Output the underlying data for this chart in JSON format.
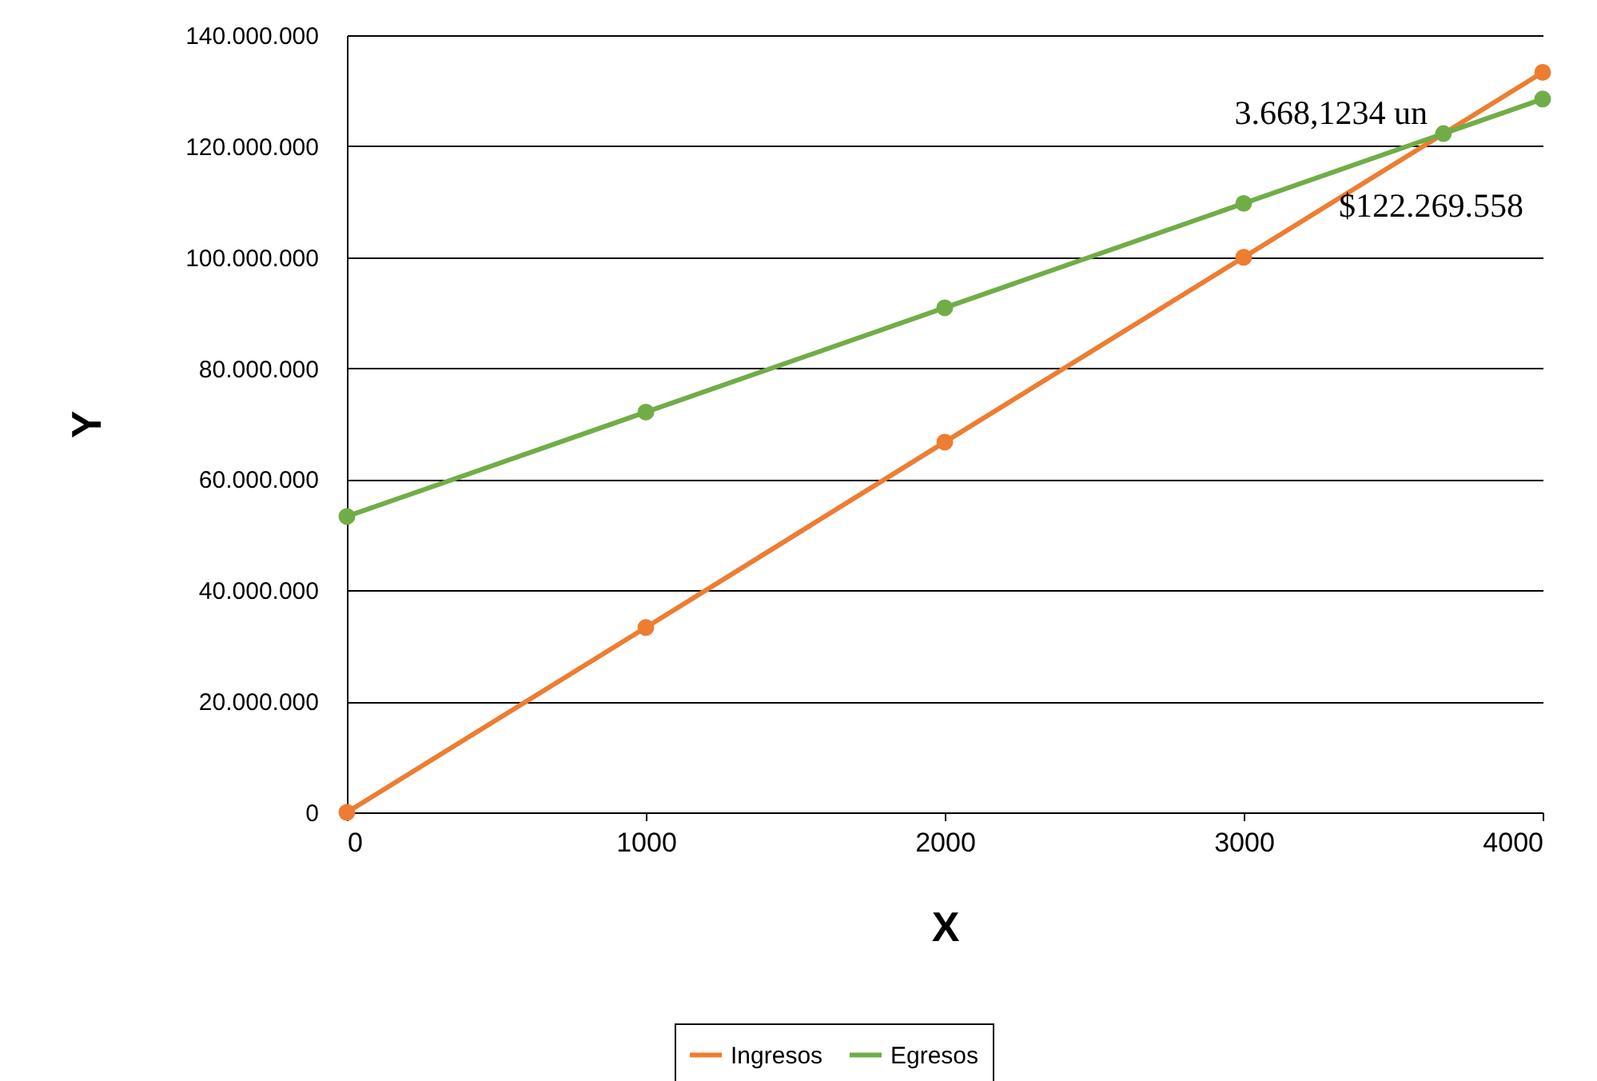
{
  "chart_data": {
    "type": "line",
    "xlabel": "X",
    "ylabel": "Y",
    "series": [
      {
        "name": "Ingresos",
        "color": "#ed7d31",
        "x": [
          0,
          1000,
          2000,
          3000,
          4000
        ],
        "values": [
          0,
          33300000,
          66700000,
          100000000,
          133300000
        ]
      },
      {
        "name": "Egresos",
        "color": "#70ad47",
        "x": [
          0,
          1000,
          2000,
          3000,
          3668.1234,
          4000
        ],
        "values": [
          53300000,
          72100000,
          90900000,
          109700000,
          122269558,
          128500000
        ]
      }
    ],
    "xlim": [
      0,
      4000
    ],
    "xticks": [
      0,
      1000,
      2000,
      3000,
      4000
    ],
    "ylim": [
      0,
      140000000
    ],
    "yticks": [
      {
        "value": 0,
        "label": "0"
      },
      {
        "value": 20000000,
        "label": "20.000.000"
      },
      {
        "value": 40000000,
        "label": "40.000.000"
      },
      {
        "value": 60000000,
        "label": "60.000.000"
      },
      {
        "value": 80000000,
        "label": "80.000.000"
      },
      {
        "value": 100000000,
        "label": "100.000.000"
      },
      {
        "value": 120000000,
        "label": "120.000.000"
      },
      {
        "value": 140000000,
        "label": "140.000.000"
      }
    ],
    "annotations": [
      {
        "text": "3.668,1234 un",
        "x": 3668.1234,
        "y": 122269558
      },
      {
        "text": "$122.269.558",
        "x": 3668.1234,
        "y": 122269558
      }
    ],
    "grid": "y",
    "legend": "bottom",
    "marker": "circle",
    "line_style": "solid"
  }
}
